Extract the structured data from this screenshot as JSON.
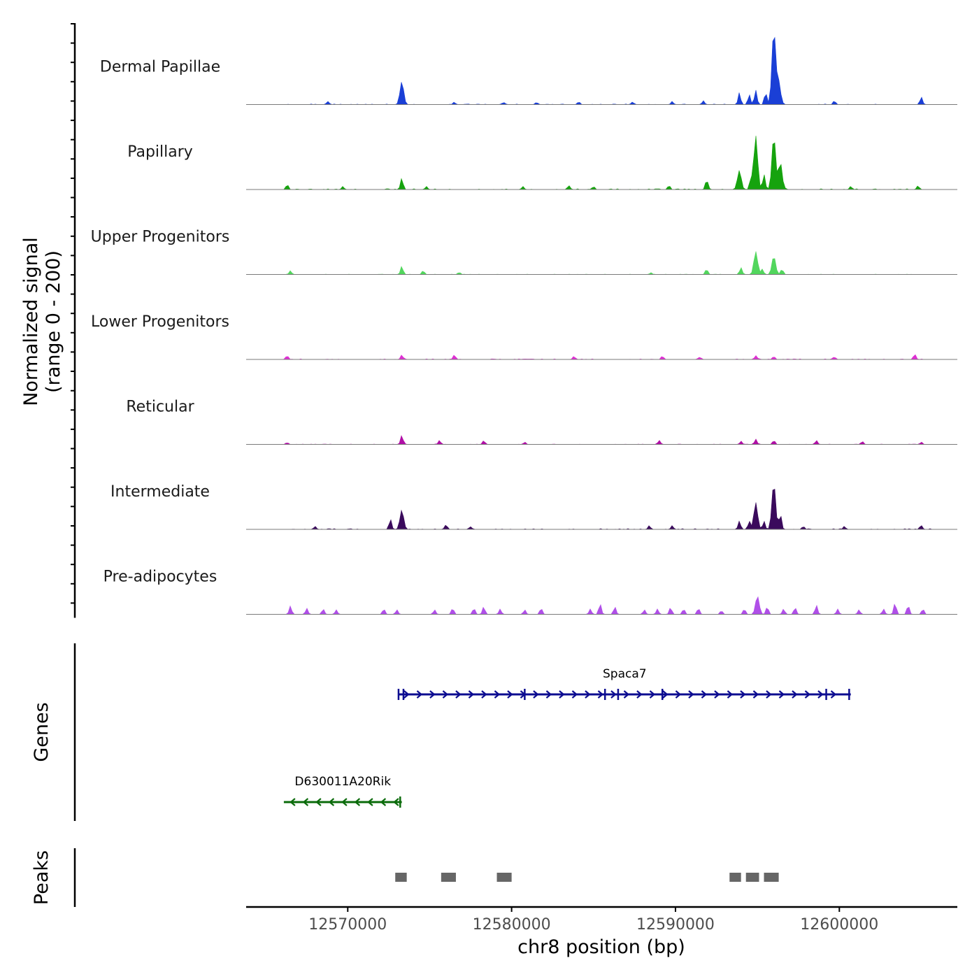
{
  "chart_data": {
    "type": "area",
    "title": "",
    "ylabel_coverage": "Normalized signal\n(range 0 - 200)",
    "ylabel_coverage_line1": "Normalized signal",
    "ylabel_coverage_line2": "(range 0 - 200)",
    "ylim": [
      0,
      200
    ],
    "xlabel": "chr8 position (bp)",
    "xlim": [
      12563800,
      12607200
    ],
    "x_ticks": [
      12570000,
      12580000,
      12590000,
      12600000
    ],
    "x_tick_labels": [
      "12570000",
      "12580000",
      "12590000",
      "12600000"
    ],
    "tracks": [
      {
        "name": "Dermal Papillae",
        "color": "#1a3fd6",
        "baseline": 3,
        "peaks": [
          [
            12568800,
            8
          ],
          [
            12573300,
            60
          ],
          [
            12576500,
            6
          ],
          [
            12579500,
            6
          ],
          [
            12581500,
            5
          ],
          [
            12584100,
            7
          ],
          [
            12587400,
            6
          ],
          [
            12589800,
            8
          ],
          [
            12591700,
            10
          ],
          [
            12593900,
            30
          ],
          [
            12594500,
            26
          ],
          [
            12594900,
            38
          ],
          [
            12595500,
            32
          ],
          [
            12596000,
            195
          ],
          [
            12596300,
            60
          ],
          [
            12599700,
            9
          ],
          [
            12605000,
            20
          ]
        ]
      },
      {
        "name": "Papillary",
        "color": "#16a30e",
        "baseline": 4,
        "peaks": [
          [
            12566300,
            12
          ],
          [
            12569700,
            8
          ],
          [
            12573300,
            30
          ],
          [
            12574800,
            8
          ],
          [
            12580700,
            6
          ],
          [
            12583500,
            10
          ],
          [
            12585000,
            8
          ],
          [
            12589600,
            10
          ],
          [
            12591900,
            25
          ],
          [
            12593900,
            50
          ],
          [
            12594600,
            28
          ],
          [
            12594900,
            140
          ],
          [
            12595400,
            40
          ],
          [
            12596000,
            140
          ],
          [
            12596400,
            70
          ],
          [
            12600700,
            8
          ],
          [
            12604800,
            10
          ]
        ]
      },
      {
        "name": "Upper Progenitors",
        "color": "#52d65d",
        "baseline": 2,
        "peaks": [
          [
            12566500,
            10
          ],
          [
            12573300,
            22
          ],
          [
            12574600,
            10
          ],
          [
            12576800,
            6
          ],
          [
            12588500,
            5
          ],
          [
            12591900,
            14
          ],
          [
            12594000,
            18
          ],
          [
            12594900,
            60
          ],
          [
            12595300,
            14
          ],
          [
            12596000,
            48
          ],
          [
            12596500,
            14
          ]
        ]
      },
      {
        "name": "Lower Progenitors",
        "color": "#de2fd3",
        "baseline": 3,
        "peaks": [
          [
            12566300,
            10
          ],
          [
            12573300,
            12
          ],
          [
            12576500,
            10
          ],
          [
            12583800,
            8
          ],
          [
            12589200,
            9
          ],
          [
            12591500,
            6
          ],
          [
            12594900,
            10
          ],
          [
            12596000,
            8
          ],
          [
            12599700,
            7
          ],
          [
            12604600,
            14
          ]
        ]
      },
      {
        "name": "Reticular",
        "color": "#b00fa6",
        "baseline": 2,
        "peaks": [
          [
            12566300,
            5
          ],
          [
            12573300,
            24
          ],
          [
            12575600,
            10
          ],
          [
            12578300,
            10
          ],
          [
            12580800,
            6
          ],
          [
            12589000,
            10
          ],
          [
            12594000,
            8
          ],
          [
            12594900,
            14
          ],
          [
            12596000,
            10
          ],
          [
            12598600,
            10
          ],
          [
            12601400,
            8
          ],
          [
            12605000,
            6
          ]
        ]
      },
      {
        "name": "Intermediate",
        "color": "#3a0a5c",
        "baseline": 4,
        "peaks": [
          [
            12568000,
            8
          ],
          [
            12572600,
            26
          ],
          [
            12573300,
            50
          ],
          [
            12576000,
            12
          ],
          [
            12577500,
            6
          ],
          [
            12588400,
            10
          ],
          [
            12589800,
            10
          ],
          [
            12593900,
            22
          ],
          [
            12594500,
            20
          ],
          [
            12594900,
            70
          ],
          [
            12595400,
            20
          ],
          [
            12596000,
            120
          ],
          [
            12596400,
            40
          ],
          [
            12597800,
            8
          ],
          [
            12600300,
            8
          ],
          [
            12605000,
            10
          ]
        ]
      },
      {
        "name": "Pre-adipocytes",
        "color": "#b04fe8",
        "baseline": 0,
        "peaks": [
          [
            12566500,
            22
          ],
          [
            12567500,
            16
          ],
          [
            12568500,
            14
          ],
          [
            12569300,
            12
          ],
          [
            12572200,
            14
          ],
          [
            12573000,
            12
          ],
          [
            12575300,
            12
          ],
          [
            12576400,
            16
          ],
          [
            12577700,
            16
          ],
          [
            12578300,
            20
          ],
          [
            12579300,
            14
          ],
          [
            12580800,
            12
          ],
          [
            12581800,
            16
          ],
          [
            12584800,
            14
          ],
          [
            12585400,
            28
          ],
          [
            12586300,
            20
          ],
          [
            12588100,
            12
          ],
          [
            12588900,
            14
          ],
          [
            12589700,
            18
          ],
          [
            12590500,
            14
          ],
          [
            12591400,
            16
          ],
          [
            12592800,
            10
          ],
          [
            12594200,
            14
          ],
          [
            12595000,
            48
          ],
          [
            12595600,
            20
          ],
          [
            12596600,
            14
          ],
          [
            12597300,
            18
          ],
          [
            12598600,
            24
          ],
          [
            12599900,
            14
          ],
          [
            12601200,
            12
          ],
          [
            12602700,
            14
          ],
          [
            12603400,
            30
          ],
          [
            12604200,
            24
          ],
          [
            12605100,
            14
          ],
          [
            12606000,
            12
          ]
        ]
      }
    ],
    "genes_label": "Genes",
    "genes": [
      {
        "name": "Spaca7",
        "start": 12573100,
        "end": 12600700,
        "strand": "+",
        "color": "#0d0d91",
        "exons": [
          12573100,
          12573400,
          12580800,
          12585700,
          12586500,
          12589200,
          12599200,
          12600600
        ]
      },
      {
        "name": "D630011A20Rik",
        "start": 12566100,
        "end": 12573300,
        "strand": "-",
        "color": "#0b6b0b",
        "exons": [
          12573200
        ]
      }
    ],
    "peaks_label": "Peaks",
    "peak_regions": [
      [
        12572900,
        12573600
      ],
      [
        12575700,
        12576600
      ],
      [
        12579100,
        12580000
      ],
      [
        12593300,
        12594000
      ],
      [
        12594300,
        12595100
      ],
      [
        12595400,
        12596300
      ]
    ]
  }
}
